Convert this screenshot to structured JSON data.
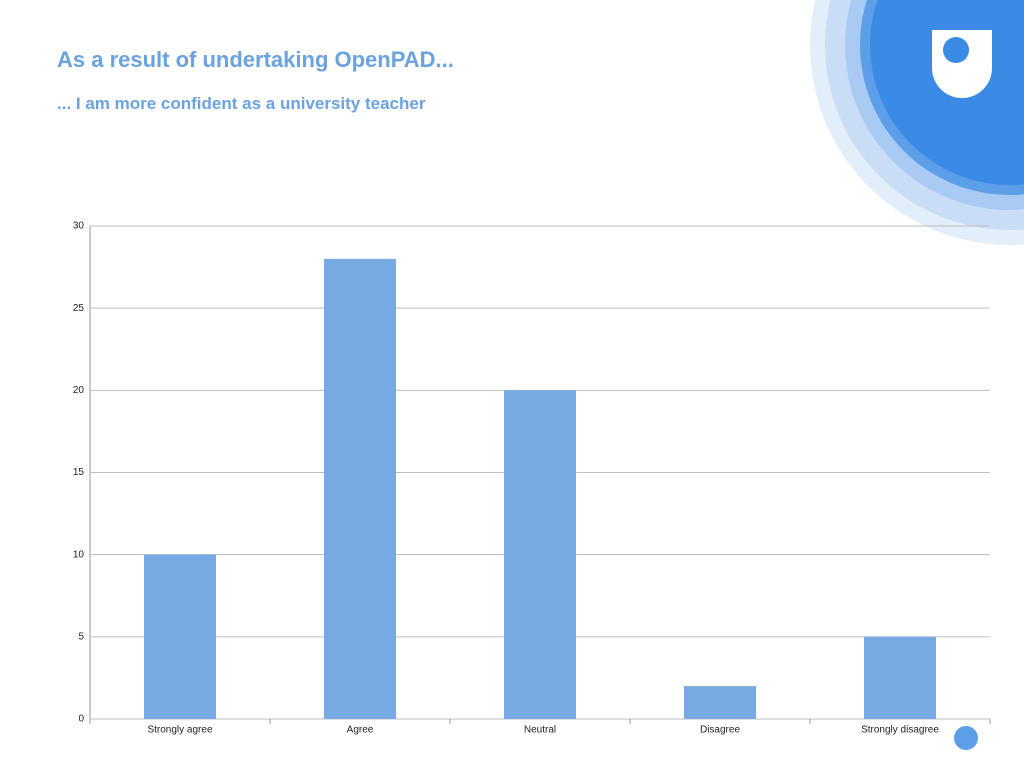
{
  "chart_data": {
    "type": "bar",
    "title": "As a result of undertaking OpenPAD...",
    "subtitle": "... I am more confident as a university teacher",
    "categories": [
      "Strongly agree",
      "Agree",
      "Neutral",
      "Disagree",
      "Strongly disagree"
    ],
    "values": [
      10,
      28,
      20,
      2,
      5
    ],
    "color": "#77aae3",
    "ylim": [
      0,
      30
    ],
    "yticks": [
      0,
      5,
      10,
      15,
      20,
      25,
      30
    ],
    "grid": true
  }
}
